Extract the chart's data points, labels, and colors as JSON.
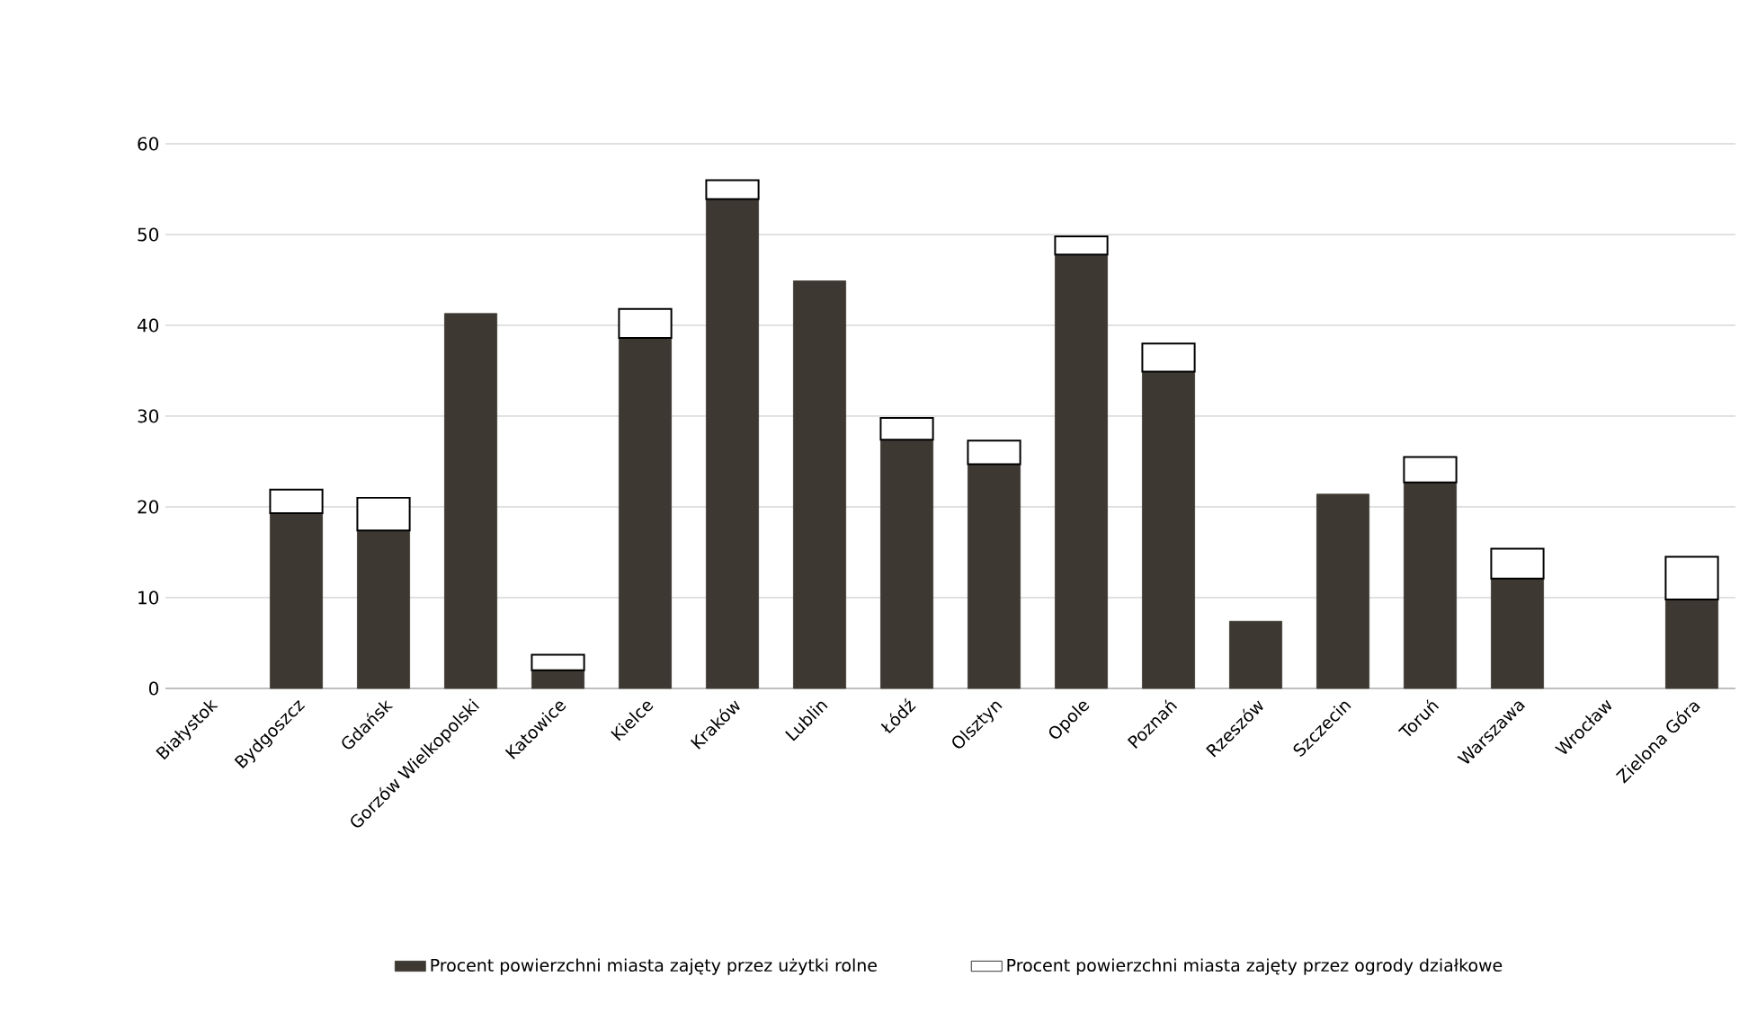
{
  "chart_data": {
    "type": "bar",
    "stacked": true,
    "categories": [
      "Białystok",
      "Bydgoszcz",
      "Gdańsk",
      "Gorzów Wielkopolski",
      "Katowice",
      "Kielce",
      "Kraków",
      "Lublin",
      "Łódź",
      "Olsztyn",
      "Opole",
      "Poznań",
      "Rzeszów",
      "Szczecin",
      "Toruń",
      "Warszawa",
      "Wrocław",
      "Zielona Góra"
    ],
    "series": [
      {
        "name": "Procent powierzchni miasta zajęty przez użytki rolne",
        "color": "#3d3832",
        "values": [
          null,
          19.3,
          17.4,
          41.3,
          2.0,
          38.6,
          53.9,
          44.9,
          27.4,
          24.7,
          47.8,
          34.9,
          7.4,
          21.4,
          22.7,
          12.1,
          null,
          9.8
        ]
      },
      {
        "name": "Procent powierzchni miasta zajęty przez ogrody działkowe",
        "color": "#ffffff",
        "values": [
          null,
          2.6,
          3.6,
          null,
          1.7,
          3.2,
          2.1,
          null,
          2.4,
          2.6,
          2.0,
          3.1,
          null,
          null,
          2.8,
          3.3,
          null,
          4.7
        ]
      }
    ],
    "ylim": [
      0,
      60
    ],
    "yticks": [
      0,
      10,
      20,
      30,
      40,
      50,
      60
    ],
    "grid": "y",
    "legend": "bottom"
  }
}
